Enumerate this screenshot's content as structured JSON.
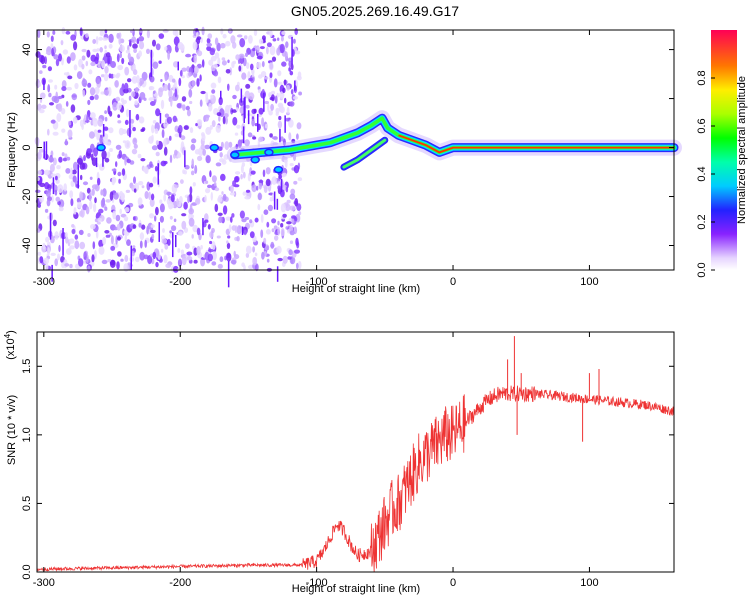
{
  "title": "GN05.2025.269.16.49.G17",
  "chart_data": [
    {
      "type": "heatmap",
      "name": "spectrogram",
      "xlabel": "Height of straight line (km)",
      "ylabel": "Frequency (Hz)",
      "xlim": [
        -305,
        162
      ],
      "ylim": [
        -50,
        48
      ],
      "xticks": [
        -300,
        -200,
        -100,
        0,
        100
      ],
      "xtick_labels": [
        "-300",
        "-200",
        "-100",
        "0",
        "100"
      ],
      "yticks": [
        -40,
        -20,
        0,
        20,
        40
      ],
      "ytick_labels": [
        "-40",
        "-20",
        "0",
        "20",
        "40"
      ],
      "noise_region_x": [
        -305,
        -112
      ],
      "ridge": [
        [
          -160,
          -3
        ],
        [
          -140,
          -2
        ],
        [
          -120,
          -1
        ],
        [
          -100,
          1
        ],
        [
          -90,
          2
        ],
        [
          -80,
          4
        ],
        [
          -70,
          6
        ],
        [
          -60,
          9
        ],
        [
          -52,
          12
        ],
        [
          -48,
          8
        ],
        [
          -40,
          5
        ],
        [
          -30,
          3
        ],
        [
          -20,
          1
        ],
        [
          -10,
          -2
        ],
        [
          0,
          0
        ],
        [
          50,
          0
        ],
        [
          100,
          0
        ],
        [
          162,
          0
        ]
      ],
      "lower_branch": [
        [
          -80,
          -8
        ],
        [
          -70,
          -5
        ],
        [
          -60,
          -1
        ],
        [
          -50,
          3
        ]
      ],
      "colorbar": {
        "label": "Normalized spectral amplitude",
        "range": [
          0.0,
          1.0
        ],
        "ticks": [
          0.0,
          0.2,
          0.4,
          0.6,
          0.8
        ],
        "tick_labels": [
          "0.0",
          "0.2",
          "0.4",
          "0.6",
          "0.8"
        ]
      }
    },
    {
      "type": "line",
      "name": "snr",
      "xlabel": "Height of straight line (km)",
      "ylabel": "SNR (10 * v/v)",
      "scale_label": "(x10",
      "scale_exp": "4",
      "scale_close": ")",
      "xlim": [
        -305,
        162
      ],
      "ylim": [
        0,
        1.75
      ],
      "xticks": [
        -300,
        -200,
        -100,
        0,
        100
      ],
      "xtick_labels": [
        "-300",
        "-200",
        "-100",
        "0",
        "100"
      ],
      "yticks": [
        0.0,
        0.5,
        1.0,
        1.5
      ],
      "ytick_labels": [
        "0.0",
        "0.5",
        "1.0",
        "1.5"
      ],
      "color": "#ee3333",
      "series": [
        {
          "name": "SNR",
          "x": [
            -305,
            -250,
            -200,
            -150,
            -110,
            -100,
            -95,
            -90,
            -85,
            -80,
            -75,
            -70,
            -60,
            -55,
            -50,
            -45,
            -40,
            -35,
            -30,
            -25,
            -20,
            -15,
            -10,
            -5,
            0,
            5,
            10,
            15,
            20,
            25,
            30,
            35,
            40,
            45,
            50,
            55,
            60,
            70,
            80,
            90,
            100,
            110,
            120,
            130,
            140,
            150,
            162
          ],
          "y": [
            0.02,
            0.03,
            0.04,
            0.05,
            0.05,
            0.08,
            0.15,
            0.25,
            0.35,
            0.3,
            0.2,
            0.12,
            0.15,
            0.25,
            0.35,
            0.45,
            0.5,
            0.6,
            0.7,
            0.8,
            0.85,
            0.9,
            0.95,
            1.0,
            1.0,
            1.05,
            1.1,
            1.15,
            1.2,
            1.25,
            1.28,
            1.3,
            1.3,
            1.3,
            1.3,
            1.3,
            1.3,
            1.29,
            1.28,
            1.27,
            1.26,
            1.25,
            1.24,
            1.23,
            1.22,
            1.2,
            1.17
          ]
        }
      ],
      "spikes": [
        [
          40,
          1.55
        ],
        [
          45,
          1.72
        ],
        [
          47,
          1.0
        ],
        [
          50,
          1.45
        ],
        [
          100,
          1.45
        ],
        [
          107,
          1.48
        ],
        [
          95,
          0.95
        ]
      ]
    }
  ]
}
